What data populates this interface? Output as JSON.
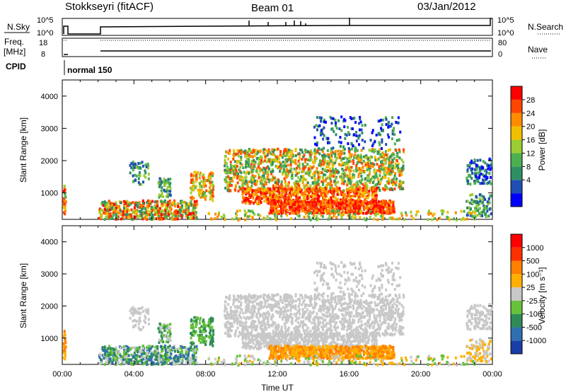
{
  "header": {
    "station": "Stokkseyri (fitACF)",
    "beam": "Beam 01",
    "date": "03/Jan/2012"
  },
  "panels": {
    "nsky": {
      "label": "N.Sky",
      "ticks": [
        "10^5",
        "10^0"
      ],
      "right_label": "N.Search",
      "right_ticks": [
        "10^5",
        "10^0"
      ]
    },
    "freq": {
      "label_line1": "Freq.",
      "label_line2": "[MHz]",
      "ticks": [
        "18",
        "8"
      ],
      "right_label": "Nave",
      "right_ticks": [
        "80",
        "0"
      ]
    },
    "cpid": {
      "label": "CPID",
      "mode": "normal 150"
    }
  },
  "chart_data": [
    {
      "type": "heatmap",
      "title": "",
      "ylabel": "Slant Range [km]",
      "xlabel": "",
      "yticks": [
        "4000",
        "3000",
        "2000",
        "1000"
      ],
      "ylim": [
        180,
        4500
      ],
      "xlim": [
        "00:00",
        "24:00"
      ],
      "colorbar": {
        "label": "Power [dB]",
        "ticks": [
          "28",
          "24",
          "20",
          "16",
          "12",
          "8",
          "4"
        ],
        "colors": [
          "#0000ff",
          "#1f4fb4",
          "#2f8f62",
          "#4caf50",
          "#9acd32",
          "#f0c000",
          "#ff8c00",
          "#ff4500",
          "#ff0000"
        ]
      }
    },
    {
      "type": "heatmap",
      "title": "",
      "ylabel": "Slant Range [km]",
      "xlabel": "Time UT",
      "yticks": [
        "4000",
        "3000",
        "2000",
        "1000"
      ],
      "ylim": [
        180,
        4500
      ],
      "xlim": [
        "00:00",
        "24:00"
      ],
      "xticks": [
        "00:00",
        "04:00",
        "08:00",
        "12:00",
        "16:00",
        "20:00",
        "00:00"
      ],
      "colorbar": {
        "label": "Velocity [m s⁻¹]",
        "ticks": [
          "1000",
          "500",
          "100",
          "25",
          "-25",
          "-100",
          "-500",
          "-1000"
        ],
        "colors": [
          "#1a3ea8",
          "#2f6fb0",
          "#2e8b57",
          "#66c23a",
          "#c8c8c8",
          "#ffb000",
          "#ff7f00",
          "#ff3000",
          "#ff0000"
        ]
      }
    }
  ]
}
